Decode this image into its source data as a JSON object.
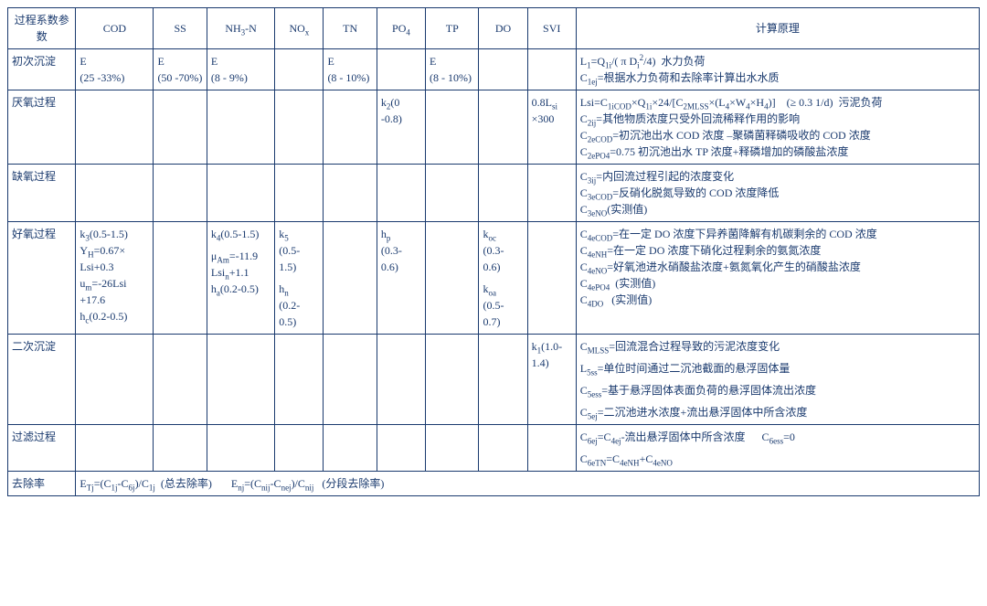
{
  "headers": {
    "param": "过程系数参数",
    "cod": "COD",
    "ss": "SS",
    "nh3n": "NH<sub>3</sub>-N",
    "nox": "NO<sub>x</sub>",
    "tn": "TN",
    "po4": "PO<sub>4</sub>",
    "tp": "TP",
    "do": "DO",
    "svi": "SVI",
    "principle": "计算原理"
  },
  "rows": {
    "primary": {
      "label": "初次沉淀",
      "cod": "E<br>(25 -33%)",
      "ss": "E<br>(50 -70%)",
      "nh3n": "E<br>(8 - 9%)",
      "tn": "E<br>(8 - 10%)",
      "tp": "E<br>(8 - 10%)",
      "principle": "L<sub>1</sub>=Q<sub>1i</sub>/( π D<sub>i</sub><sup>2</sup>/4)&nbsp;&nbsp;水力负荷<br>C<sub>1ej</sub>=根据水力负荷和去除率计算出水水质"
    },
    "anaerobic": {
      "label": "厌氧过程",
      "po4": "k<sub>2</sub>(0<br>-0.8)",
      "svi": "0.8L<sub>si</sub><br>×300",
      "principle": "Lsi=C<sub>1iCOD</sub>×Q<sub>1i</sub>×24/[C<sub>2MLSS</sub>×(L<sub>4</sub>×W<sub>4</sub>×H<sub>4</sub>)]&nbsp;&nbsp;&nbsp;&nbsp;(≥ 0.3 1/d)&nbsp;&nbsp;污泥负荷<br>C<sub>2ij</sub>=其他物质浓度只受外回流稀释作用的影响<br>C<sub>2eCOD</sub>=初沉池出水 COD 浓度 –聚磷菌释磷吸收的 COD 浓度<br>C<sub>2ePO4</sub>=0.75 初沉池出水 TP 浓度+释磷增加的磷酸盐浓度"
    },
    "anoxic": {
      "label": "缺氧过程",
      "principle": "C<sub>3ij</sub>=内回流过程引起的浓度变化<br>C<sub>3eCOD</sub>=反硝化脱氮导致的 COD 浓度降低<br>C<sub>3eNO</sub>(实测值)"
    },
    "aerobic": {
      "label": "好氧过程",
      "cod": "k<sub>3</sub>(0.5-1.5)<br>Y<sub>H</sub>=0.67×<br>Lsi+0.3<br>u<sub>m</sub>=-26Lsi<br>+17.6<br>h<sub>c</sub>(0.2-0.5)",
      "nh3n": "k<sub>4</sub>(0.5-1.5)<br><span class=\"spacer\"></span>μ<sub>Am</sub>=-11.9<br>Lsi<sub>n</sub>+1.1<br>h<sub>a</sub>(0.2-0.5)",
      "nox": "k<sub>5</sub><br>(0.5-<br>1.5)<br><span class=\"spacer\"></span>h<sub>n</sub><br>(0.2-<br>0.5)",
      "po4": "h<sub>p</sub><br>(0.3-<br>0.6)",
      "do": "k<sub>oc</sub><br>(0.3-<br>0.6)<br><span class=\"spacer\"></span>k<sub>oa</sub><br>(0.5-<br>0.7)",
      "principle": "C<sub>4eCOD</sub>=在一定 DO 浓度下异养菌降解有机碳剩余的 COD 浓度<br>C<sub>4eNH</sub>=在一定 DO 浓度下硝化过程剩余的氨氮浓度<br>C<sub>4eNO</sub>=好氧池进水硝酸盐浓度+氨氮氧化产生的硝酸盐浓度<br>C<sub>4ePO4</sub>&nbsp;&nbsp;(实测值)<br>C<sub>4DO</sub>&nbsp;&nbsp;&nbsp;(实测值)"
    },
    "secondary": {
      "label": "二次沉淀",
      "svi": "k<sub>1</sub>(1.0-<br>1.4)",
      "principle": "C<sub>MLSS</sub>=回流混合过程导致的污泥浓度变化<br><span class=\"spacer\"></span>L<sub>5ss</sub>=单位时间通过二沉池截面的悬浮固体量<br><span class=\"spacer\"></span>C<sub>5ess</sub>=基于悬浮固体表面负荷的悬浮固体流出浓度<br><span class=\"spacer\"></span>C<sub>5ej</sub>=二沉池进水浓度+流出悬浮固体中所含浓度"
    },
    "filter": {
      "label": "过滤过程",
      "principle": "C<sub>6ej</sub>=C<sub>4ej</sub>-流出悬浮固体中所含浓度&nbsp;&nbsp;&nbsp;&nbsp;&nbsp;&nbsp;C<sub>6ess</sub>=0<br><span class=\"spacer\"></span>C<sub>6eTN</sub>=C<sub>4eNH</sub>+C<sub>4eNO</sub>"
    },
    "removal": {
      "label": "去除率",
      "formula": "E<sub>Tj</sub>=(C<sub>1j</sub>-C<sub>6j</sub>)/C<sub>1j</sub>&nbsp;&nbsp;(总去除率)&nbsp;&nbsp;&nbsp;&nbsp;&nbsp;&nbsp;&nbsp;E<sub>nj</sub>=(C<sub>nij</sub>-C<sub>nej</sub>)/C<sub>nij</sub>&nbsp;&nbsp;&nbsp;(分段去除率)"
    }
  }
}
